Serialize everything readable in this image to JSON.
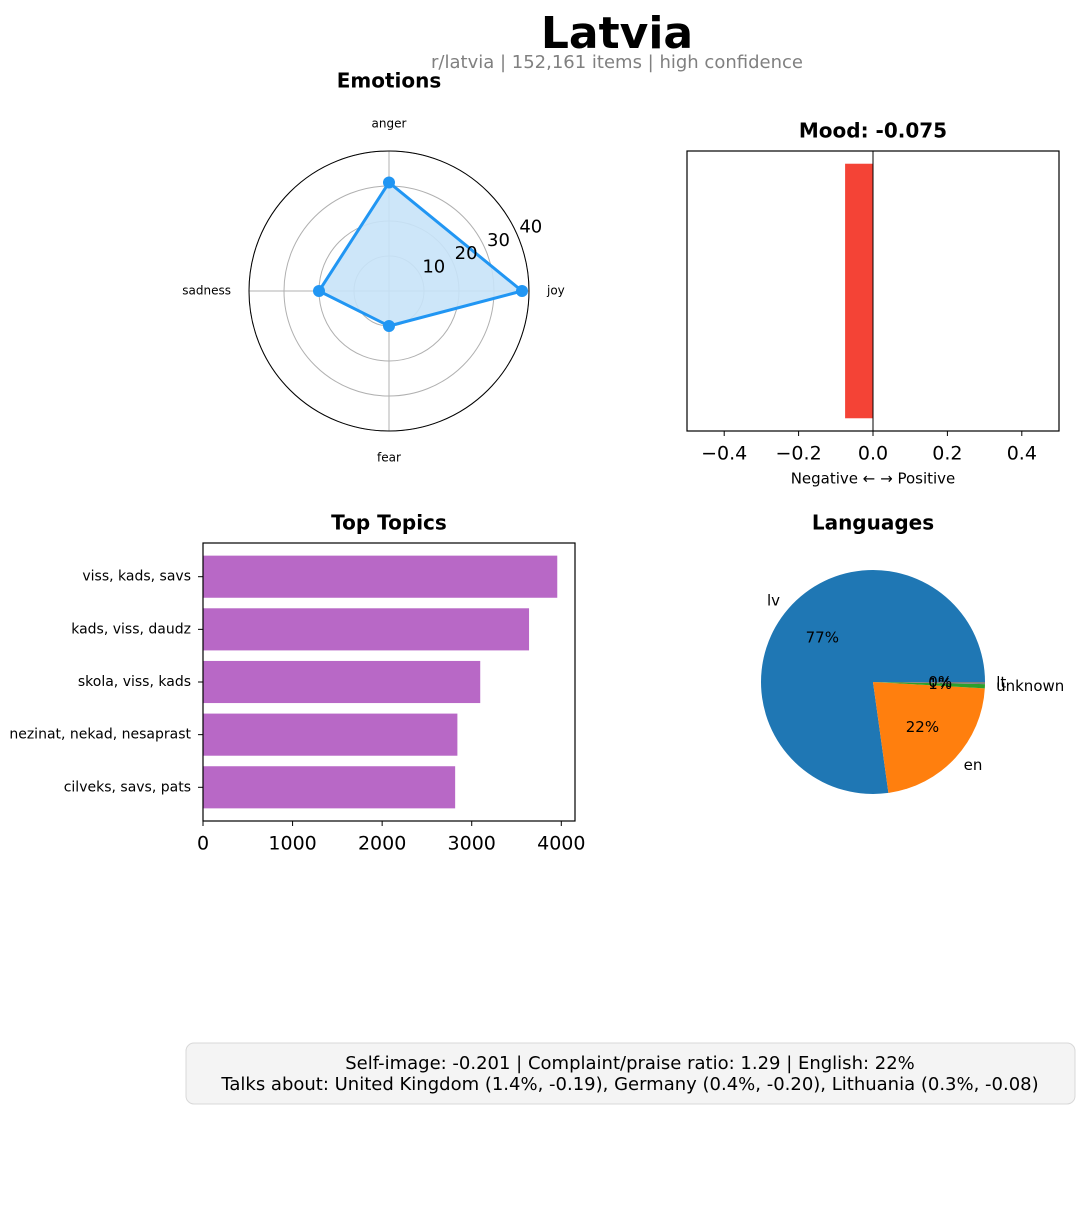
{
  "title": "Latvia",
  "subtitle": "r/latvia | 152,161 items | high confidence",
  "chart_data": [
    {
      "type": "radar",
      "title": "Emotions",
      "categories": [
        "anger",
        "sadness",
        "fear",
        "joy"
      ],
      "values": [
        31,
        20,
        10,
        38
      ],
      "color": "#2196f3",
      "fill": "#c8e3f8",
      "ylim": [
        0,
        40
      ],
      "yticks": [
        10,
        20,
        30,
        40
      ],
      "grid": true
    },
    {
      "type": "bar",
      "orientation": "horizontal",
      "title": "Mood: -0.075",
      "categories": [
        null
      ],
      "values": [
        -0.075
      ],
      "color": "#f44336",
      "xlim": [
        -0.5,
        0.5
      ],
      "xticks": [
        {
          "value": -0.4,
          "label": "−0.4"
        },
        {
          "value": -0.2,
          "label": "−0.2"
        },
        {
          "value": 0,
          "label": "0.0"
        },
        0.2,
        0.4
      ],
      "xlabel": "Negative ← → Positive"
    },
    {
      "type": "bar",
      "orientation": "horizontal",
      "title": "Top Topics",
      "categories": [
        "viss, kads, savs",
        "kads, viss, daudz",
        "skola, viss, kads",
        "nezinat, nekad, nesaprast",
        "cilveks, savs, pats"
      ],
      "values": [
        3955,
        3640,
        3095,
        2840,
        2815
      ],
      "color": "#b868c6",
      "xlim": [
        0,
        4153
      ],
      "xticks": [
        0,
        1000,
        2000,
        3000,
        4000
      ]
    },
    {
      "type": "pie",
      "title": "Languages",
      "categories": [
        "lv",
        "en",
        "unknown",
        "lt"
      ],
      "values": [
        77.2,
        21.9,
        0.6,
        0.3
      ],
      "value_labels": [
        "77%",
        "22%",
        "1%",
        "0%"
      ],
      "colors": [
        "#1f77b4",
        "#ff7f0e",
        "#2ca02c",
        "#7f7f7f"
      ]
    }
  ],
  "footer": [
    "Self-image: -0.201  |  Complaint/praise ratio: 1.29  |  English: 22%",
    "Talks about: United Kingdom (1.4%, -0.19), Germany (0.4%, -0.20), Lithuania (0.3%, -0.08)"
  ]
}
